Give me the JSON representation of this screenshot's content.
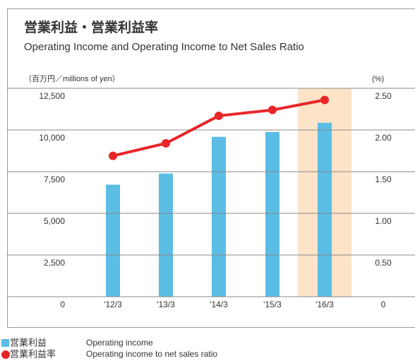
{
  "chart_data": {
    "type": "bar_line",
    "title": "営業利益・営業利益率",
    "subtitle": "Operating Income and Operating Income to Net Sales Ratio",
    "y_label": "（百万円／millions of yen）",
    "y2_label": "(%)",
    "categories": [
      "'12/3",
      "'13/3",
      "'14/3",
      "'15/3",
      "'16/3"
    ],
    "highlight_category": "'16/3",
    "highlight_color": "#fde3c8",
    "series": [
      {
        "name": "営業利益",
        "description": "Operating income",
        "color": "#5bbde4",
        "type": "bar",
        "values": [
          6720,
          7390,
          9590,
          9880,
          10430
        ]
      },
      {
        "name": "営業利益率",
        "description": "Operating income to net sales ratio",
        "color": "#e8262a",
        "type": "line",
        "axis": "y2",
        "values": [
          1.69,
          1.84,
          2.17,
          2.24,
          2.36
        ]
      }
    ],
    "ylim": [
      0,
      12500
    ],
    "yticks": [
      0,
      {
        "value": 2500,
        "label": "2,500"
      },
      {
        "value": 5000,
        "label": "5,000"
      },
      {
        "value": 7500,
        "label": "7,500"
      },
      {
        "value": 10000,
        "label": "10,000"
      },
      {
        "value": 12500,
        "label": "12,500"
      }
    ],
    "y2lim": [
      0,
      2.5
    ],
    "y2ticks": [
      0,
      {
        "value": 0.5,
        "label": "0.50"
      },
      {
        "value": 1,
        "label": "1.00"
      },
      {
        "value": 1.5,
        "label": "1.50"
      },
      {
        "value": 2,
        "label": "2.00"
      },
      {
        "value": 2.5,
        "label": "2.50"
      }
    ],
    "grid": true
  }
}
